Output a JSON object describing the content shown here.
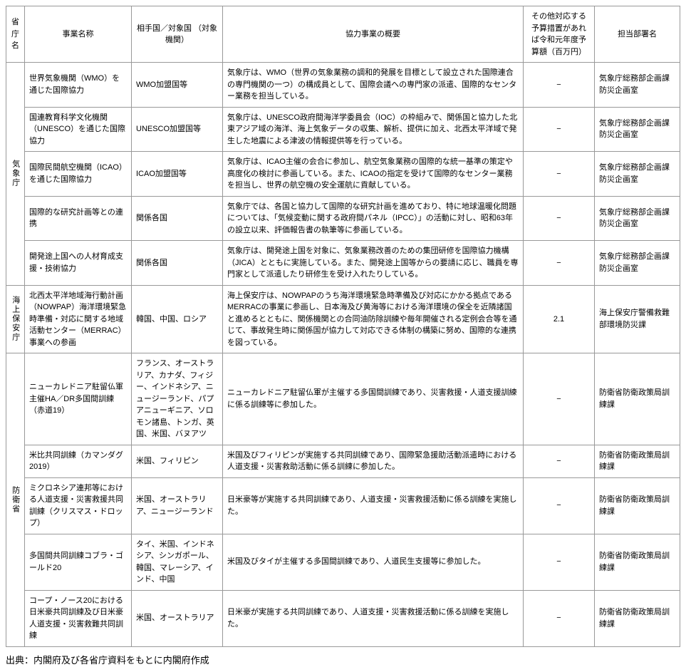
{
  "headers": {
    "ministry": "省庁名",
    "name": "事業名称",
    "partner": "相手国／対象国\n（対象機関）",
    "summary": "協力事業の概要",
    "budget": "その他対応する予算措置があれば令和元年度予算額（百万円）",
    "dept": "担当部署名"
  },
  "groups": [
    {
      "ministry": "気象庁",
      "rows": [
        {
          "name": "世界気象機関（WMO）を通じた国際協力",
          "partner": "WMO加盟国等",
          "summary": "気象庁は、WMO（世界の気象業務の調和的発展を目標として設立された国際連合の専門機関の一つ）の構成員として、国際会議への専門家の派遣、国際的なセンター業務を担当している。",
          "budget": "−",
          "dept": "気象庁総務部企画課防災企画室"
        },
        {
          "name": "国連教育科学文化機関（UNESCO）を通じた国際協力",
          "partner": "UNESCO加盟国等",
          "summary": "気象庁は、UNESCO政府間海洋学委員会（IOC）の枠組みで、関係国と協力した北東アジア域の海洋、海上気象データの収集、解析、提供に加え、北西太平洋域で発生した地震による津波の情報提供等を行っている。",
          "budget": "−",
          "dept": "気象庁総務部企画課防災企画室"
        },
        {
          "name": "国際民間航空機関（ICAO）を通じた国際協力",
          "partner": "ICAO加盟国等",
          "summary": "気象庁は、ICAO主催の会合に参加し、航空気象業務の国際的な統一基準の策定や高度化の検討に参画している。また、ICAOの指定を受けて国際的なセンター業務を担当し、世界の航空機の安全運航に貢献している。",
          "budget": "−",
          "dept": "気象庁総務部企画課防災企画室"
        },
        {
          "name": "国際的な研究計画等との連携",
          "partner": "関係各国",
          "summary": "気象庁では、各国と協力して国際的な研究計画を進めており、特に地球温暖化問題については、「気候変動に関する政府間パネル（IPCC）」の活動に対し、昭和63年の設立以来、評価報告書の執筆等に参画している。",
          "budget": "−",
          "dept": "気象庁総務部企画課防災企画室"
        },
        {
          "name": "開発途上国への人材育成支援・技術協力",
          "partner": "関係各国",
          "summary": "気象庁は、開発途上国を対象に、気象業務改善のための集団研修を国際協力機構（JICA）とともに実施している。また、開発途上国等からの要請に応じ、職員を専門家として派遣したり研修生を受け入れたりしている。",
          "budget": "−",
          "dept": "気象庁総務部企画課防災企画室"
        }
      ]
    },
    {
      "ministry": "海上保安庁",
      "rows": [
        {
          "name": "北西太平洋地域海行動計画（NOWPAP）海洋環境緊急時準備・対応に関する地域活動センター（MERRAC）事業への参画",
          "partner": "韓国、中国、ロシア",
          "summary": "海上保安庁は、NOWPAPのうち海洋環境緊急時準備及び対応にかかる拠点であるMERRACの事業に参画し、日本海及び黄海等における海洋環境の保全を近隣諸国と進めるとともに、関係機関との合同油防除訓練や毎年開催される定例会合等を通じて、事故発生時に関係国が協力して対応できる体制の構築に努め、国際的な連携を図っている。",
          "budget": "2.1",
          "dept": "海上保安庁警備救難部環境防災課"
        }
      ]
    },
    {
      "ministry": "防衛省",
      "rows": [
        {
          "name": "ニューカレドニア駐留仏軍主催HA／DR多国間訓練（赤道19）",
          "partner": "フランス、オーストラリア、カナダ、フィジー、インドネシア、ニュージーランド、パプアニューギニア、ソロモン諸島、トンガ、英国、米国、バヌアツ",
          "summary": "ニューカレドニア駐留仏軍が主催する多国間訓練であり、災害救援・人道支援訓練に係る訓練等に参加した。",
          "budget": "−",
          "dept": "防衛省防衛政策局訓練課"
        },
        {
          "name": "米比共同訓練（カマンダグ2019）",
          "partner": "米国、フィリピン",
          "summary": "米国及びフィリピンが実施する共同訓練であり、国際緊急援助活動派遣時における人道支援・災害救助活動に係る訓練に参加した。",
          "budget": "−",
          "dept": "防衛省防衛政策局訓練課"
        },
        {
          "name": "ミクロネシア連邦等における人道支援・災害救援共同訓練（クリスマス・ドロップ）",
          "partner": "米国、オーストラリア、ニュージーランド",
          "summary": "日米豪等が実施する共同訓練であり、人道支援・災害救援活動に係る訓練を実施した。",
          "budget": "−",
          "dept": "防衛省防衛政策局訓練課"
        },
        {
          "name": "多国間共同訓練コブラ・ゴールド20",
          "partner": "タイ、米国、インドネシア、シンガポール、韓国、マレーシア、インド、中国",
          "summary": "米国及びタイが主催する多国間訓練であり、人道民生支援等に参加した。",
          "budget": "−",
          "dept": "防衛省防衛政策局訓練課"
        },
        {
          "name": "コープ・ノース20における日米豪共同訓練及び日米豪人道支援・災害救難共同訓練",
          "partner": "米国、オーストラリア",
          "summary": "日米豪が実施する共同訓練であり、人道支援・災害救援活動に係る訓練を実施した。",
          "budget": "−",
          "dept": "防衛省防衛政策局訓練課"
        }
      ]
    }
  ],
  "source": "出典：内閣府及び各省庁資料をもとに内閣府作成"
}
